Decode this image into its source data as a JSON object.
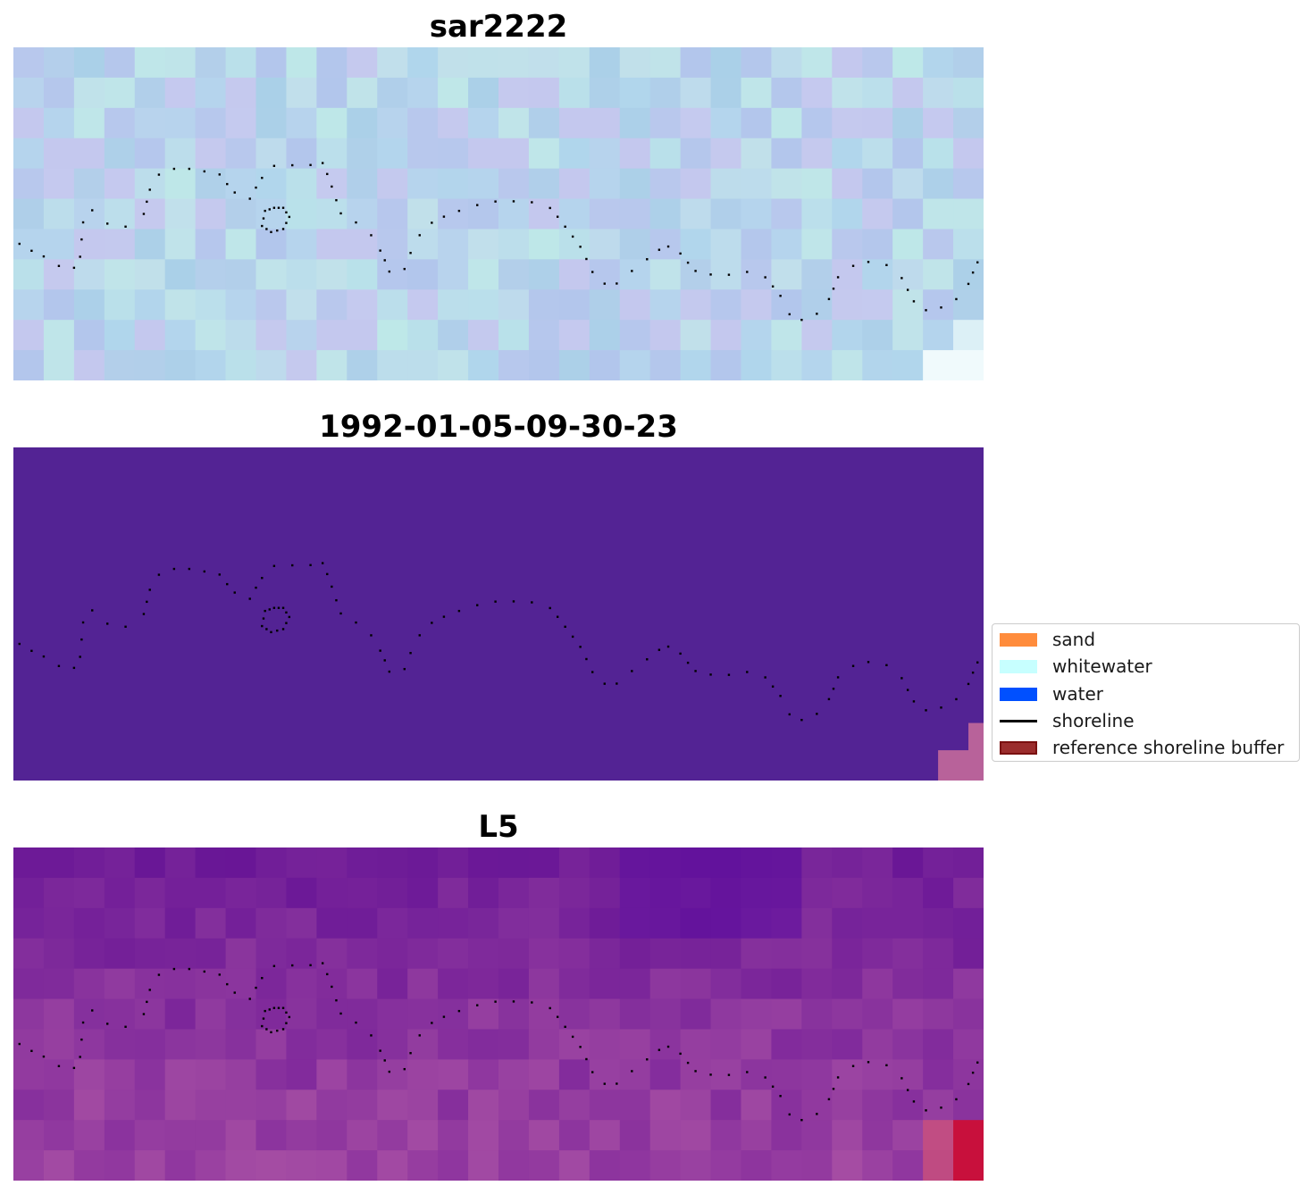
{
  "panels": [
    {
      "title": "sar2222",
      "style": "sar"
    },
    {
      "title": "1992-01-05-09-30-23",
      "style": "classified"
    },
    {
      "title": "L5",
      "style": "l5"
    }
  ],
  "legend": {
    "position": "center-right",
    "items": [
      {
        "label": "sand",
        "kind": "patch",
        "color": "#ff8c3c"
      },
      {
        "label": "whitewater",
        "kind": "patch",
        "color": "#c7ffff"
      },
      {
        "label": "water",
        "kind": "patch",
        "color": "#0050ff"
      },
      {
        "label": "shoreline",
        "kind": "line",
        "color": "#000000"
      },
      {
        "label": "reference shoreline buffer",
        "kind": "patch",
        "color": "#9b2d2d",
        "edge": "#7a1010"
      }
    ]
  },
  "colors": {
    "classified_background": "#532394",
    "classified_corner": "#b8629a",
    "shoreline": "#000000"
  },
  "chart_data": {
    "type": "image-map",
    "grid": {
      "cols": 32,
      "rows": 11
    },
    "axis": "off",
    "shoreline_style": "dotted black points",
    "shoreline": [
      [
        0.2,
        6.5
      ],
      [
        1.0,
        6.9
      ],
      [
        1.5,
        7.2
      ],
      [
        2.0,
        7.3
      ],
      [
        2.2,
        6.9
      ],
      [
        2.3,
        5.8
      ],
      [
        2.6,
        5.4
      ],
      [
        3.1,
        5.8
      ],
      [
        3.7,
        5.9
      ],
      [
        4.3,
        5.5
      ],
      [
        4.5,
        4.7
      ],
      [
        4.8,
        4.2
      ],
      [
        5.3,
        4.0
      ],
      [
        5.8,
        4.0
      ],
      [
        6.3,
        4.1
      ],
      [
        6.8,
        4.2
      ],
      [
        7.3,
        4.8
      ],
      [
        7.8,
        5.0
      ],
      [
        8.2,
        4.3
      ],
      [
        8.6,
        3.9
      ],
      [
        9.2,
        3.9
      ],
      [
        9.8,
        3.9
      ],
      [
        10.2,
        3.8
      ],
      [
        10.5,
        4.6
      ],
      [
        10.8,
        5.5
      ],
      [
        11.3,
        5.8
      ],
      [
        11.8,
        6.2
      ],
      [
        12.1,
        6.7
      ],
      [
        12.4,
        7.4
      ],
      [
        12.9,
        7.3
      ],
      [
        13.1,
        6.8
      ],
      [
        13.4,
        6.2
      ],
      [
        13.8,
        5.8
      ],
      [
        14.2,
        5.6
      ],
      [
        14.7,
        5.4
      ],
      [
        15.3,
        5.2
      ],
      [
        15.9,
        5.1
      ],
      [
        16.5,
        5.1
      ],
      [
        17.1,
        5.1
      ],
      [
        17.7,
        5.3
      ],
      [
        18.2,
        5.9
      ],
      [
        18.7,
        6.6
      ],
      [
        19.1,
        7.4
      ],
      [
        19.5,
        7.8
      ],
      [
        19.9,
        7.8
      ],
      [
        20.4,
        7.4
      ],
      [
        20.9,
        7.0
      ],
      [
        21.3,
        6.7
      ],
      [
        21.6,
        6.6
      ],
      [
        22.0,
        6.8
      ],
      [
        22.5,
        7.4
      ],
      [
        23.0,
        7.5
      ],
      [
        23.6,
        7.5
      ],
      [
        24.2,
        7.4
      ],
      [
        24.8,
        7.6
      ],
      [
        25.3,
        8.2
      ],
      [
        25.6,
        8.8
      ],
      [
        26.0,
        9.0
      ],
      [
        26.5,
        8.8
      ],
      [
        26.9,
        8.3
      ],
      [
        27.2,
        7.6
      ],
      [
        27.7,
        7.2
      ],
      [
        28.2,
        7.1
      ],
      [
        28.8,
        7.2
      ],
      [
        29.3,
        7.6
      ],
      [
        29.7,
        8.4
      ],
      [
        30.1,
        8.7
      ],
      [
        30.6,
        8.6
      ],
      [
        31.1,
        8.3
      ],
      [
        31.5,
        7.8
      ],
      [
        31.8,
        7.1
      ],
      [
        32.0,
        6.6
      ]
    ],
    "loop": [
      [
        8.6,
        5.3
      ],
      [
        8.3,
        5.4
      ],
      [
        8.2,
        5.9
      ],
      [
        8.5,
        6.1
      ],
      [
        8.9,
        6.0
      ],
      [
        9.1,
        5.6
      ],
      [
        8.9,
        5.3
      ]
    ]
  }
}
